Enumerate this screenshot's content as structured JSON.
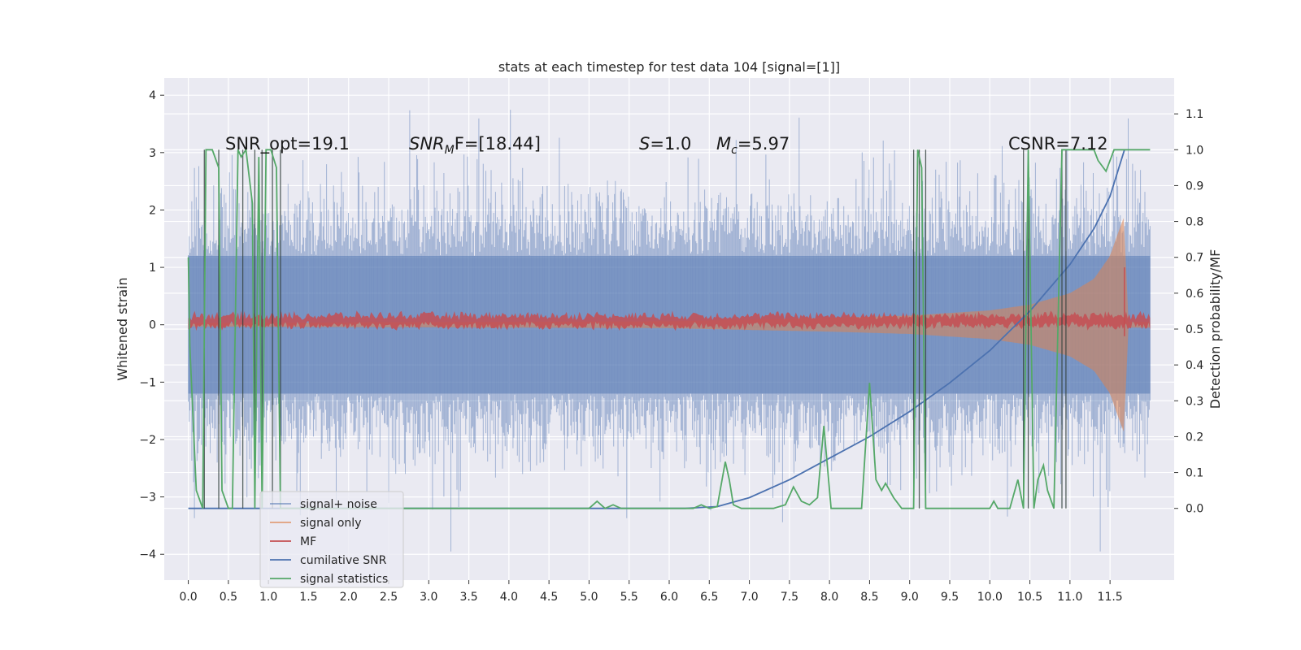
{
  "chart_data": {
    "type": "line",
    "title": "stats at each timestep for test data 104 [signal=[1]]",
    "ylabel": "Whitened strain",
    "y2label": "Detection probability/MF",
    "xlim": [
      -0.3,
      12.3
    ],
    "ylim": [
      -4.45,
      4.3
    ],
    "y2lim": [
      -0.2,
      1.2
    ],
    "grid": true,
    "legend_position": "lower-left",
    "x_ticks": [
      "0.0",
      "0.5",
      "1.0",
      "1.5",
      "2.0",
      "2.5",
      "3.0",
      "3.5",
      "4.0",
      "4.5",
      "5.0",
      "5.5",
      "6.0",
      "6.5",
      "7.0",
      "7.5",
      "8.0",
      "8.5",
      "9.0",
      "9.5",
      "10.0",
      "10.5",
      "11.0",
      "11.5"
    ],
    "y_ticks": [
      "4",
      "3",
      "2",
      "1",
      "0",
      "−1",
      "−2",
      "−3",
      "−4"
    ],
    "y2_ticks": [
      "1.1",
      "1.0",
      "0.9",
      "0.8",
      "0.7",
      "0.6",
      "0.5",
      "0.4",
      "0.3",
      "0.2",
      "0.1",
      "0.0"
    ],
    "annotations": {
      "snr_opt": "SNR_opt=19.1",
      "snr_mf_base": "SNR",
      "snr_mf_sub": "M",
      "snr_mf_rest": "F=[18.44]",
      "s_var": "S",
      "s_rest": "=1.0",
      "mc_var": "M",
      "mc_sub": "c",
      "mc_rest": "=5.97",
      "csnr": "CSNR=7.12"
    },
    "series": [
      {
        "name": "signal+ noise",
        "color": "#4c72b0",
        "note": "noise band approx ±1.2, spikes up to ~3.9 and down to ~-4.1"
      },
      {
        "name": "signal only",
        "color": "#dd8452",
        "envelope": {
          "x": [
            0,
            6,
            8,
            9,
            10,
            10.5,
            11,
            11.3,
            11.5,
            11.6,
            11.68,
            11.72
          ],
          "amp": [
            0.03,
            0.06,
            0.12,
            0.16,
            0.25,
            0.35,
            0.55,
            0.8,
            1.2,
            1.6,
            1.9,
            0.1
          ]
        }
      },
      {
        "name": "MF",
        "color": "#c44e52",
        "level": 0.07
      },
      {
        "name": "cumilative SNR",
        "color": "#4c72b0",
        "x": [
          0,
          6.2,
          6.6,
          7,
          7.5,
          8,
          8.5,
          9,
          9.5,
          10,
          10.5,
          11,
          11.3,
          11.5,
          11.68
        ],
        "y": [
          0,
          0,
          0.005,
          0.03,
          0.08,
          0.14,
          0.2,
          0.27,
          0.35,
          0.44,
          0.55,
          0.68,
          0.78,
          0.87,
          1.0
        ]
      },
      {
        "name": "signal statistics",
        "color": "#55a868",
        "x": [
          0,
          0.02,
          0.1,
          0.18,
          0.22,
          0.3,
          0.38,
          0.42,
          0.5,
          0.55,
          0.62,
          0.66,
          0.72,
          0.8,
          0.83,
          0.88,
          0.92,
          0.97,
          1.03,
          1.1,
          1.15,
          1.3,
          2,
          5,
          5.1,
          5.2,
          5.3,
          5.4,
          6.3,
          6.4,
          6.5,
          6.6,
          6.7,
          6.75,
          6.8,
          6.9,
          7.3,
          7.45,
          7.55,
          7.65,
          7.75,
          7.85,
          7.93,
          8.02,
          8.1,
          8.4,
          8.5,
          8.58,
          8.65,
          8.7,
          8.8,
          8.9,
          9.05,
          9.1,
          9.15,
          9.2,
          9.3,
          9.5,
          10.0,
          10.05,
          10.1,
          10.25,
          10.35,
          10.42,
          10.48,
          10.55,
          10.6,
          10.67,
          10.72,
          10.8,
          10.9,
          10.95,
          11.0,
          11.3,
          11.35,
          11.45,
          11.55,
          11.62,
          11.7,
          12.0
        ],
        "y": [
          0.7,
          0.45,
          0.05,
          0,
          1.0,
          1.0,
          0.95,
          0.05,
          0,
          0,
          1.0,
          0.98,
          1.0,
          0.85,
          0,
          0.98,
          0,
          1.0,
          1.0,
          0.95,
          0,
          0,
          0,
          0,
          0.02,
          0,
          0.01,
          0,
          0,
          0.01,
          0,
          0.005,
          0.13,
          0.08,
          0.01,
          0,
          0,
          0.01,
          0.06,
          0.02,
          0.01,
          0.03,
          0.23,
          0,
          0,
          0,
          0.35,
          0.08,
          0.05,
          0.07,
          0.03,
          0,
          0,
          1.0,
          0.95,
          0,
          0,
          0,
          0,
          0.02,
          0,
          0,
          0.08,
          0,
          1.0,
          0,
          0.08,
          0.12,
          0.05,
          0,
          1.0,
          1.0,
          1.0,
          1.0,
          0.97,
          0.94,
          1.0,
          1.0,
          1.0,
          1.0
        ]
      }
    ]
  }
}
